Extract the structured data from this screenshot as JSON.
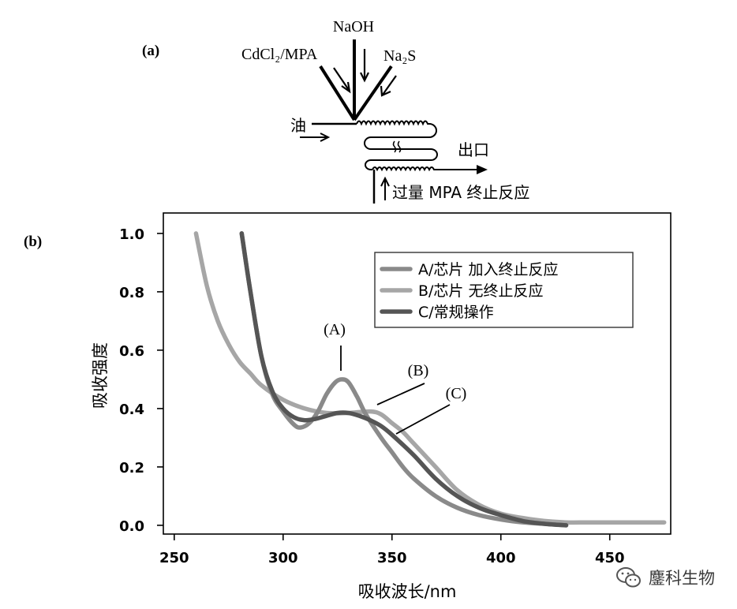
{
  "panel_a": {
    "label": "(a)",
    "input_top": "NaOH",
    "input_left": "CdCl₂/MPA",
    "input_right": "Na₂S",
    "oil_label": "油",
    "outlet_label": "出口",
    "quench_label": "过量 MPA 终止反应"
  },
  "panel_b_label": "(b)",
  "watermark": {
    "text": "鏖科生物",
    "icon": "wechat-icon"
  },
  "colors": {
    "A": "#8a8a8a",
    "B": "#a6a6a6",
    "C": "#555555"
  },
  "chart_data": {
    "type": "line",
    "xlabel": "吸收波长/nm",
    "ylabel": "吸收强度",
    "xlim": [
      245,
      478
    ],
    "ylim": [
      -0.03,
      1.07
    ],
    "x_ticks": [
      "250",
      "300",
      "350",
      "400",
      "450"
    ],
    "y_ticks": [
      "0.0",
      "0.2",
      "0.4",
      "0.6",
      "0.8",
      "1.0"
    ],
    "grid": false,
    "legend_position": "top-right",
    "series": [
      {
        "name": "A/芯片 加入终止反应",
        "key": "A",
        "x": [
          281,
          285,
          290,
          295,
          300,
          305,
          308,
          312,
          316,
          320,
          324,
          327,
          330,
          334,
          338,
          345,
          350,
          355,
          360,
          370,
          380,
          390,
          400,
          410,
          420,
          430
        ],
        "y": [
          1.0,
          0.8,
          0.58,
          0.45,
          0.39,
          0.345,
          0.335,
          0.35,
          0.39,
          0.45,
          0.49,
          0.5,
          0.49,
          0.44,
          0.38,
          0.3,
          0.25,
          0.2,
          0.16,
          0.1,
          0.06,
          0.035,
          0.02,
          0.01,
          0.005,
          0.0
        ]
      },
      {
        "name": "B/芯片 无终止反应",
        "key": "B",
        "x": [
          260,
          265,
          270,
          275,
          280,
          285,
          290,
          300,
          310,
          320,
          330,
          340,
          345,
          350,
          355,
          360,
          370,
          380,
          390,
          400,
          410,
          420,
          430,
          440,
          450,
          460,
          475
        ],
        "y": [
          1.0,
          0.82,
          0.7,
          0.62,
          0.56,
          0.52,
          0.48,
          0.43,
          0.4,
          0.385,
          0.385,
          0.39,
          0.38,
          0.35,
          0.32,
          0.28,
          0.2,
          0.12,
          0.07,
          0.04,
          0.025,
          0.015,
          0.01,
          0.01,
          0.01,
          0.01,
          0.01
        ]
      },
      {
        "name": "C/常规操作",
        "key": "C",
        "x": [
          281,
          285,
          290,
          295,
          300,
          305,
          310,
          315,
          320,
          325,
          330,
          335,
          340,
          345,
          350,
          360,
          370,
          380,
          390,
          400,
          410,
          420,
          430
        ],
        "y": [
          1.0,
          0.8,
          0.58,
          0.46,
          0.4,
          0.37,
          0.36,
          0.365,
          0.375,
          0.385,
          0.385,
          0.375,
          0.36,
          0.34,
          0.31,
          0.24,
          0.16,
          0.1,
          0.06,
          0.035,
          0.015,
          0.005,
          0.0
        ]
      }
    ],
    "annotations": [
      {
        "text": "(A)",
        "series": "A",
        "x": 328,
        "y": 0.5
      },
      {
        "text": "(B)",
        "series": "B",
        "x": 345,
        "y": 0.385
      },
      {
        "text": "(C)",
        "series": "C",
        "x": 353,
        "y": 0.29
      }
    ]
  }
}
